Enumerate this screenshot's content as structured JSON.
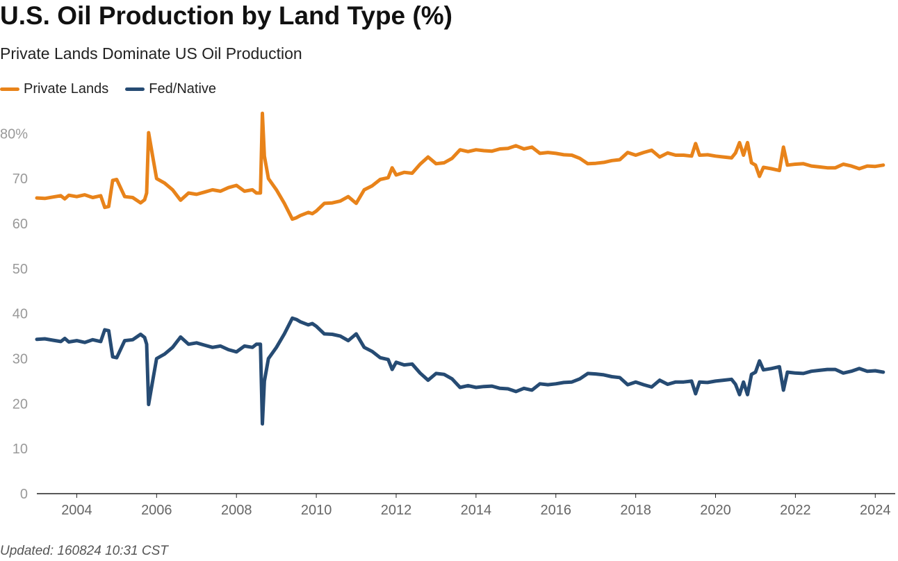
{
  "title": "U.S. Oil Production by Land Type (%)",
  "subtitle": "Private Lands Dominate US Oil Production",
  "footer": "Updated: 160824 10:31 CST",
  "chart_data": {
    "type": "line",
    "ylim": [
      0,
      85
    ],
    "xlim": [
      2003.0,
      2024.5
    ],
    "y_ticks": [
      0,
      10,
      20,
      30,
      40,
      50,
      60,
      70,
      80
    ],
    "y_tick_labels": [
      "0",
      "10",
      "20",
      "30",
      "40",
      "50",
      "60",
      "70",
      "80%"
    ],
    "x_ticks": [
      2004,
      2006,
      2008,
      2010,
      2012,
      2014,
      2016,
      2018,
      2020,
      2022,
      2024
    ],
    "x_tick_labels": [
      "2004",
      "2006",
      "2008",
      "2010",
      "2012",
      "2014",
      "2016",
      "2018",
      "2020",
      "2022",
      "2024"
    ],
    "grid": false,
    "legend_position": "top-left",
    "series": [
      {
        "name": "Private Lands",
        "color": "#E8831A",
        "x": [
          2003.0,
          2003.2,
          2003.4,
          2003.6,
          2003.7,
          2003.8,
          2004.0,
          2004.2,
          2004.4,
          2004.6,
          2004.7,
          2004.8,
          2004.9,
          2005.0,
          2005.2,
          2005.4,
          2005.6,
          2005.7,
          2005.75,
          2005.8,
          2005.9,
          2006.0,
          2006.2,
          2006.4,
          2006.6,
          2006.8,
          2007.0,
          2007.2,
          2007.4,
          2007.6,
          2007.8,
          2008.0,
          2008.2,
          2008.4,
          2008.5,
          2008.6,
          2008.65,
          2008.7,
          2008.8,
          2009.0,
          2009.2,
          2009.4,
          2009.5,
          2009.6,
          2009.8,
          2009.9,
          2010.0,
          2010.2,
          2010.4,
          2010.6,
          2010.8,
          2011.0,
          2011.2,
          2011.4,
          2011.6,
          2011.8,
          2011.9,
          2012.0,
          2012.2,
          2012.4,
          2012.6,
          2012.8,
          2013.0,
          2013.2,
          2013.4,
          2013.6,
          2013.8,
          2014.0,
          2014.2,
          2014.4,
          2014.6,
          2014.8,
          2015.0,
          2015.2,
          2015.4,
          2015.6,
          2015.8,
          2016.0,
          2016.2,
          2016.4,
          2016.6,
          2016.8,
          2017.0,
          2017.2,
          2017.4,
          2017.6,
          2017.8,
          2018.0,
          2018.2,
          2018.4,
          2018.6,
          2018.8,
          2019.0,
          2019.2,
          2019.4,
          2019.5,
          2019.6,
          2019.8,
          2020.0,
          2020.2,
          2020.4,
          2020.5,
          2020.6,
          2020.7,
          2020.8,
          2020.9,
          2021.0,
          2021.1,
          2021.2,
          2021.4,
          2021.6,
          2021.7,
          2021.8,
          2022.0,
          2022.2,
          2022.4,
          2022.6,
          2022.8,
          2023.0,
          2023.2,
          2023.4,
          2023.6,
          2023.8,
          2024.0,
          2024.2
        ],
        "values": [
          65.7,
          65.6,
          65.9,
          66.2,
          65.5,
          66.3,
          66.0,
          66.4,
          65.8,
          66.2,
          63.6,
          63.8,
          69.6,
          69.8,
          66.0,
          65.8,
          64.6,
          65.3,
          66.8,
          80.2,
          75.0,
          70.0,
          69.0,
          67.5,
          65.2,
          66.8,
          66.5,
          67.0,
          67.5,
          67.2,
          68.0,
          68.5,
          67.2,
          67.5,
          66.8,
          66.8,
          84.5,
          75.0,
          70.0,
          67.5,
          64.5,
          61.0,
          61.3,
          61.8,
          62.5,
          62.2,
          62.8,
          64.5,
          64.6,
          65.0,
          66.0,
          64.5,
          67.5,
          68.4,
          69.8,
          70.2,
          72.4,
          70.8,
          71.4,
          71.2,
          73.2,
          74.8,
          73.3,
          73.5,
          74.5,
          76.4,
          76.0,
          76.4,
          76.2,
          76.1,
          76.6,
          76.7,
          77.3,
          76.6,
          77.0,
          75.6,
          75.8,
          75.6,
          75.3,
          75.2,
          74.5,
          73.3,
          73.4,
          73.6,
          74.0,
          74.2,
          75.8,
          75.2,
          75.8,
          76.3,
          74.8,
          75.7,
          75.2,
          75.2,
          75.0,
          77.8,
          75.2,
          75.3,
          75.0,
          74.8,
          74.6,
          75.7,
          78.0,
          75.2,
          78.0,
          73.5,
          73.0,
          70.5,
          72.5,
          72.2,
          71.8,
          77.0,
          73.0,
          73.2,
          73.3,
          72.8,
          72.6,
          72.4,
          72.4,
          73.2,
          72.8,
          72.2,
          72.8,
          72.7,
          73.0
        ]
      },
      {
        "name": "Fed/Native",
        "color": "#264B73",
        "x": [
          2003.0,
          2003.2,
          2003.4,
          2003.6,
          2003.7,
          2003.8,
          2004.0,
          2004.2,
          2004.4,
          2004.6,
          2004.7,
          2004.8,
          2004.9,
          2005.0,
          2005.2,
          2005.4,
          2005.6,
          2005.7,
          2005.75,
          2005.8,
          2005.9,
          2006.0,
          2006.2,
          2006.4,
          2006.6,
          2006.8,
          2007.0,
          2007.2,
          2007.4,
          2007.6,
          2007.8,
          2008.0,
          2008.2,
          2008.4,
          2008.5,
          2008.6,
          2008.65,
          2008.7,
          2008.8,
          2009.0,
          2009.2,
          2009.4,
          2009.5,
          2009.6,
          2009.8,
          2009.9,
          2010.0,
          2010.2,
          2010.4,
          2010.6,
          2010.8,
          2011.0,
          2011.2,
          2011.4,
          2011.6,
          2011.8,
          2011.9,
          2012.0,
          2012.2,
          2012.4,
          2012.6,
          2012.8,
          2013.0,
          2013.2,
          2013.4,
          2013.6,
          2013.8,
          2014.0,
          2014.2,
          2014.4,
          2014.6,
          2014.8,
          2015.0,
          2015.2,
          2015.4,
          2015.6,
          2015.8,
          2016.0,
          2016.2,
          2016.4,
          2016.6,
          2016.8,
          2017.0,
          2017.2,
          2017.4,
          2017.6,
          2017.8,
          2018.0,
          2018.2,
          2018.4,
          2018.6,
          2018.8,
          2019.0,
          2019.2,
          2019.4,
          2019.5,
          2019.6,
          2019.8,
          2020.0,
          2020.2,
          2020.4,
          2020.5,
          2020.6,
          2020.7,
          2020.8,
          2020.9,
          2021.0,
          2021.1,
          2021.2,
          2021.4,
          2021.6,
          2021.7,
          2021.8,
          2022.0,
          2022.2,
          2022.4,
          2022.6,
          2022.8,
          2023.0,
          2023.2,
          2023.4,
          2023.6,
          2023.8,
          2024.0,
          2024.2
        ],
        "values": [
          34.3,
          34.4,
          34.1,
          33.8,
          34.5,
          33.7,
          34.0,
          33.6,
          34.2,
          33.8,
          36.4,
          36.2,
          30.4,
          30.2,
          34.0,
          34.2,
          35.4,
          34.7,
          33.2,
          19.8,
          25.0,
          30.0,
          31.0,
          32.5,
          34.8,
          33.2,
          33.5,
          33.0,
          32.5,
          32.8,
          32.0,
          31.5,
          32.8,
          32.5,
          33.2,
          33.2,
          15.5,
          25.0,
          30.0,
          32.5,
          35.5,
          39.0,
          38.7,
          38.2,
          37.5,
          37.8,
          37.2,
          35.5,
          35.4,
          35.0,
          34.0,
          35.5,
          32.5,
          31.6,
          30.2,
          29.8,
          27.6,
          29.2,
          28.6,
          28.8,
          26.8,
          25.2,
          26.7,
          26.5,
          25.5,
          23.6,
          24.0,
          23.6,
          23.8,
          23.9,
          23.4,
          23.3,
          22.7,
          23.4,
          23.0,
          24.4,
          24.2,
          24.4,
          24.7,
          24.8,
          25.5,
          26.7,
          26.6,
          26.4,
          26.0,
          25.8,
          24.2,
          24.8,
          24.2,
          23.7,
          25.2,
          24.3,
          24.8,
          24.8,
          25.0,
          22.2,
          24.8,
          24.7,
          25.0,
          25.2,
          25.4,
          24.3,
          22.0,
          24.8,
          22.0,
          26.5,
          27.0,
          29.5,
          27.5,
          27.8,
          28.2,
          23.0,
          27.0,
          26.8,
          26.7,
          27.2,
          27.4,
          27.6,
          27.6,
          26.8,
          27.2,
          27.8,
          27.2,
          27.3,
          27.0
        ]
      }
    ]
  }
}
